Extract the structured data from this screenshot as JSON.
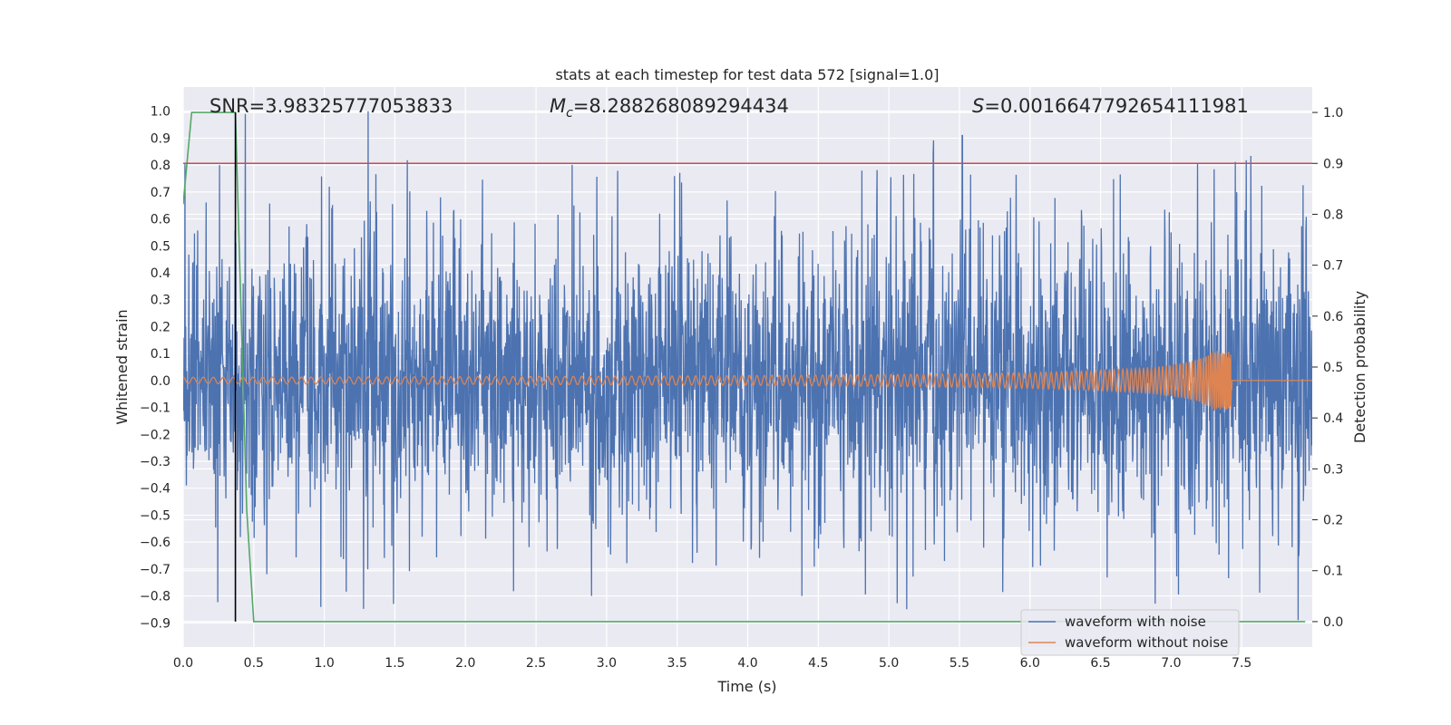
{
  "chart_data": {
    "type": "line",
    "title": "stats at each timestep for test data 572 [signal=1.0]",
    "xlabel": "Time (s)",
    "ylabel_left": "Whitened strain",
    "ylabel_right": "Detection probability",
    "xlim": [
      0.0,
      8.0
    ],
    "ylim_left": [
      -0.99,
      1.09
    ],
    "ylim_right": [
      -0.05,
      1.05
    ],
    "x_ticks": [
      "0.0",
      "0.5",
      "1.0",
      "1.5",
      "2.0",
      "2.5",
      "3.0",
      "3.5",
      "4.0",
      "4.5",
      "5.0",
      "5.5",
      "6.0",
      "6.5",
      "7.0",
      "7.5"
    ],
    "y_ticks_left": [
      "−0.9",
      "−0.8",
      "−0.7",
      "−0.6",
      "−0.5",
      "−0.4",
      "−0.3",
      "−0.2",
      "−0.1",
      "0.0",
      "0.1",
      "0.2",
      "0.3",
      "0.4",
      "0.5",
      "0.6",
      "0.7",
      "0.8",
      "0.9",
      "1.0"
    ],
    "y_ticks_right": [
      "0.0",
      "0.1",
      "0.2",
      "0.3",
      "0.4",
      "0.5",
      "0.6",
      "0.7",
      "0.8",
      "0.9",
      "1.0"
    ],
    "annotations": {
      "snr": "SNR=3.98325777053833",
      "mc_symbol": "M",
      "mc_sub": "c",
      "mc_value": "=8.288268089294434",
      "s_symbol": "S",
      "s_value": "=0.0016647792654111981"
    },
    "legend": {
      "placement": "lower right",
      "entries": [
        "waveform with noise",
        "waveform without noise"
      ]
    },
    "colors": {
      "noisy": "#4c72b0",
      "clean": "#dd8452",
      "probability": "#55a868",
      "threshold": "#c44e52",
      "marker": "#000000",
      "background": "#eaeaf2",
      "grid": "#ffffff"
    },
    "series": [
      {
        "name": "waveform with noise",
        "axis": "left",
        "description_points": "noise envelope approx ±0.55 with spikes to 1.0 / -0.9"
      },
      {
        "name": "waveform without noise",
        "axis": "left",
        "chirp_end": 7.43,
        "final_amplitude": 0.11
      },
      {
        "axis": "right",
        "x": [
          0.0,
          0.06,
          0.12,
          0.37,
          0.45,
          0.5,
          7.95
        ],
        "y": [
          0.82,
          1.0,
          1.0,
          1.0,
          0.22,
          0.0,
          0.0
        ]
      }
    ],
    "threshold_right": 0.9,
    "vline_x": 0.37
  }
}
